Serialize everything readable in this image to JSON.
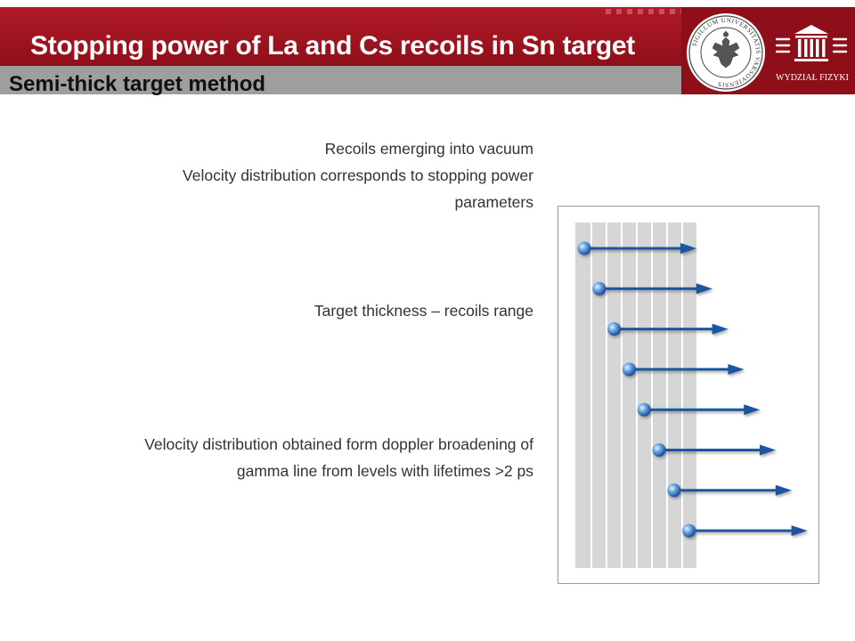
{
  "header": {
    "title": "Stopping power of La and Cs recoils in Sn target",
    "subtitle": "Semi-thick target method",
    "seal_text": "SIGILLUM UNIVERSITATIS VARSOVIENSIS",
    "faculty_name": "WYDZIAŁ FIZYKI"
  },
  "content": {
    "block1": {
      "lines": [
        "Recoils emerging into vacuum",
        "Velocity distribution corresponds to stopping power",
        "parameters"
      ]
    },
    "block2": {
      "lines": [
        "Target thickness – recoils range"
      ]
    },
    "block3": {
      "lines": [
        "Velocity distribution obtained form doppler broadening of",
        "gamma line from levels with lifetimes >2 ps"
      ]
    }
  },
  "diagram": {
    "recoil_count": 8,
    "colors": {
      "brand_red": "#a0151f",
      "subtitle_gray": "#9e9e9e",
      "arrow_blue": "#1d57a0",
      "target_layer_gray": "#d6d6d6"
    }
  }
}
